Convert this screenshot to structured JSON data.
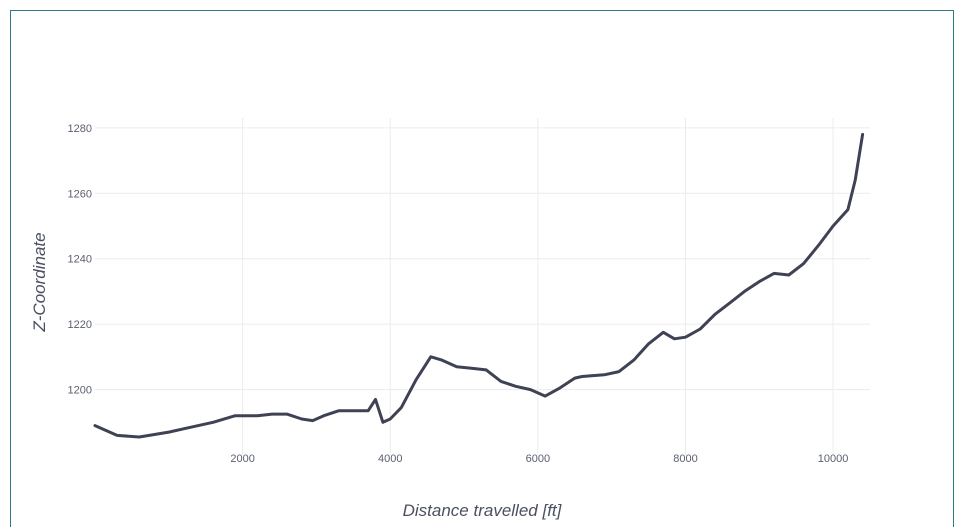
{
  "colors": {
    "line": "#3e4254",
    "grid": "#ececf0",
    "frame": "#2f7b83",
    "text": "#5a6070"
  },
  "chart_data": {
    "type": "line",
    "title": "",
    "xlabel": "Distance travelled [ft]",
    "ylabel": "Z-Coordinate",
    "xlim": [
      0,
      10500
    ],
    "ylim": [
      1180,
      1283
    ],
    "x_ticks": [
      2000,
      4000,
      6000,
      8000,
      10000
    ],
    "y_ticks": [
      1200,
      1220,
      1240,
      1260,
      1280
    ],
    "grid": true,
    "legend": "none",
    "series": [
      {
        "x": [
          0,
          300,
          600,
          1000,
          1200,
          1600,
          1900,
          2000,
          2200,
          2400,
          2600,
          2800,
          2950,
          3100,
          3300,
          3500,
          3700,
          3800,
          3900,
          4000,
          4150,
          4350,
          4550,
          4700,
          4900,
          5100,
          5300,
          5500,
          5700,
          5900,
          6100,
          6300,
          6500,
          6600,
          6900,
          7100,
          7300,
          7500,
          7700,
          7850,
          8000,
          8200,
          8400,
          8600,
          8800,
          9000,
          9200,
          9400,
          9600,
          9800,
          10000,
          10200,
          10300,
          10400
        ],
        "y": [
          1189,
          1186,
          1185.5,
          1187,
          1188,
          1190,
          1192,
          1192,
          1192,
          1192.5,
          1192.5,
          1191,
          1190.5,
          1192,
          1193.5,
          1193.5,
          1193.5,
          1197,
          1190,
          1191,
          1194.5,
          1203,
          1210,
          1209,
          1207,
          1206.5,
          1206,
          1202.5,
          1201,
          1200,
          1198,
          1200.5,
          1203.5,
          1204,
          1204.5,
          1205.5,
          1209,
          1214,
          1217.5,
          1215.5,
          1216,
          1218.5,
          1223,
          1226.5,
          1230,
          1233,
          1235.5,
          1235,
          1238.5,
          1244,
          1250,
          1255,
          1264,
          1278
        ]
      }
    ]
  }
}
